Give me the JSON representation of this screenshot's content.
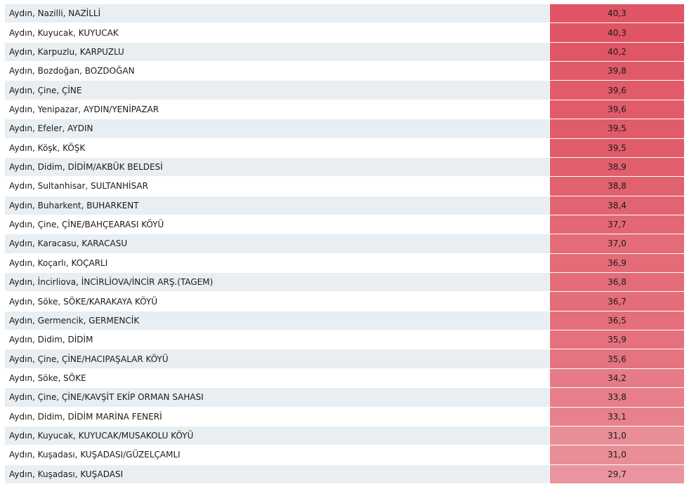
{
  "table": {
    "rows": [
      {
        "name": "Aydın, Nazilli, NAZİLLİ",
        "value": "40,3",
        "color": "#e05565"
      },
      {
        "name": "Aydın, Kuyucak, KUYUCAK",
        "value": "40,3",
        "color": "#e05565"
      },
      {
        "name": "Aydın, Karpuzlu, KARPUZLU",
        "value": "40,2",
        "color": "#e05666"
      },
      {
        "name": "Aydın, Bozdoğan, BOZDOĞAN",
        "value": "39,8",
        "color": "#e15a69"
      },
      {
        "name": "Aydın, Çine, ÇİNE",
        "value": "39,6",
        "color": "#e15b6a"
      },
      {
        "name": "Aydın, Yenipazar, AYDIN/YENİPAZAR",
        "value": "39,6",
        "color": "#e15b6a"
      },
      {
        "name": "Aydın, Efeler, AYDIN",
        "value": "39,5",
        "color": "#e15c6b"
      },
      {
        "name": "Aydın, Köşk, KÖŞK",
        "value": "39,5",
        "color": "#e15c6b"
      },
      {
        "name": "Aydın, Didim, DİDİM/AKBÜK BELDESİ",
        "value": "38,9",
        "color": "#e2606e"
      },
      {
        "name": "Aydın, Sultanhisar, SULTANHİSAR",
        "value": "38,8",
        "color": "#e2616f"
      },
      {
        "name": "Aydın, Buharkent, BUHARKENT",
        "value": "38,4",
        "color": "#e26371"
      },
      {
        "name": "Aydın, Çine, ÇİNE/BAHÇEARASI KÖYÜ",
        "value": "37,7",
        "color": "#e36775"
      },
      {
        "name": "Aydın, Karacasu, KARACASU",
        "value": "37,0",
        "color": "#e46b78"
      },
      {
        "name": "Aydın, Koçarlı, KOÇARLI",
        "value": "36,9",
        "color": "#e46c79"
      },
      {
        "name": "Aydın, İncirliova, İNCİRLİOVA/İNCİR ARŞ.(TAGEM)",
        "value": "36,8",
        "color": "#e46c79"
      },
      {
        "name": "Aydın, Söke, SÖKE/KARAKAYA KÖYÜ",
        "value": "36,7",
        "color": "#e46d7a"
      },
      {
        "name": "Aydın, Germencik, GERMENCİK",
        "value": "36,5",
        "color": "#e46e7b"
      },
      {
        "name": "Aydın, Didim, DİDİM",
        "value": "35,9",
        "color": "#e5717e"
      },
      {
        "name": "Aydın, Çine, ÇİNE/HACIPAŞALAR KÖYÜ",
        "value": "35,6",
        "color": "#e57380"
      },
      {
        "name": "Aydın, Söke, SÖKE",
        "value": "34,2",
        "color": "#e67b87"
      },
      {
        "name": "Aydın, Çine, ÇİNE/KAVŞİT EKİP ORMAN SAHASI",
        "value": "33,8",
        "color": "#e77e89"
      },
      {
        "name": "Aydın, Didim, DİDİM MARİNA FENERİ",
        "value": "33,1",
        "color": "#e7828d"
      },
      {
        "name": "Aydın, Kuyucak, KUYUCAK/MUSAKOLU KÖYÜ",
        "value": "31,0",
        "color": "#e98d97"
      },
      {
        "name": "Aydın, Kuşadası, KUŞADASI/GÜZELÇAMLI",
        "value": "31,0",
        "color": "#e98d97"
      },
      {
        "name": "Aydın, Kuşadası, KUŞADASI",
        "value": "29,7",
        "color": "#ea959e"
      }
    ]
  }
}
